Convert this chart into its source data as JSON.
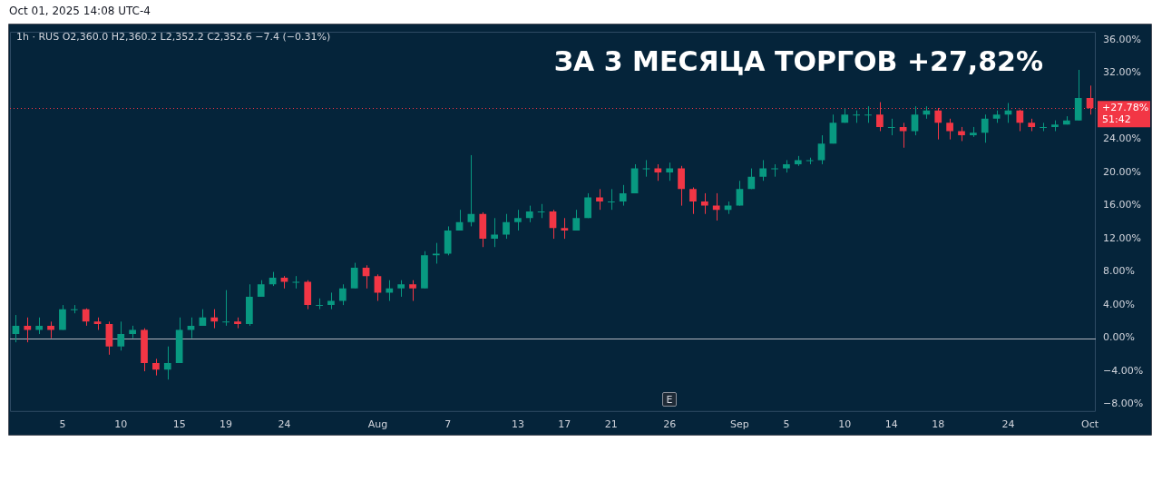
{
  "chart_data": {
    "type": "candlestick",
    "title": "ЗА 3 МЕСЯЦА ТОРГОВ +27,82%",
    "subtitle": "1h · RUS O2,360.0 H2,360.2 L2,352.2 C2,352.6 −7.4 (−0.31%)",
    "annotations": [
      "Oct 01, 2025 14:08 UTC-4",
      "E",
      "51:42"
    ],
    "categories": [
      null,
      null,
      null,
      null,
      "5",
      null,
      null,
      null,
      null,
      "10",
      null,
      null,
      null,
      null,
      "15",
      null,
      null,
      null,
      "19",
      null,
      null,
      null,
      null,
      "24",
      null,
      null,
      null,
      null,
      null,
      null,
      null,
      "Aug",
      null,
      null,
      null,
      null,
      null,
      "7",
      null,
      null,
      null,
      null,
      null,
      "13",
      null,
      null,
      null,
      "17",
      null,
      null,
      null,
      "21",
      null,
      null,
      null,
      null,
      "26",
      null,
      null,
      null,
      null,
      null,
      "Sep",
      null,
      null,
      null,
      "5",
      null,
      null,
      null,
      null,
      "10",
      null,
      null,
      null,
      "14",
      null,
      null,
      null,
      "18",
      null,
      null,
      null,
      null,
      null,
      "24",
      null,
      null,
      null,
      null,
      null,
      null,
      "Oct"
    ],
    "ohlc": [
      [
        0.5,
        2.8,
        -0.5,
        1.5
      ],
      [
        1.5,
        2.5,
        -0.5,
        1.0
      ],
      [
        1.0,
        2.5,
        0.5,
        1.5
      ],
      [
        1.5,
        2.0,
        0.0,
        1.0
      ],
      [
        1.0,
        4.0,
        1.0,
        3.5
      ],
      [
        3.5,
        4.0,
        3.0,
        3.5
      ],
      [
        3.5,
        3.6,
        1.5,
        2.0
      ],
      [
        2.0,
        2.5,
        1.0,
        1.7
      ],
      [
        1.7,
        2.0,
        -2.0,
        -1.0
      ],
      [
        -1.0,
        2.0,
        -1.5,
        0.5
      ],
      [
        0.5,
        1.5,
        0.0,
        1.0
      ],
      [
        1.0,
        1.2,
        -4.0,
        -3.0
      ],
      [
        -3.0,
        -2.5,
        -4.5,
        -3.8
      ],
      [
        -3.8,
        -1.0,
        -5.0,
        -3.0
      ],
      [
        -3.0,
        2.5,
        -3.0,
        1.0
      ],
      [
        1.0,
        2.5,
        0.0,
        1.5
      ],
      [
        1.5,
        3.5,
        1.5,
        2.5
      ],
      [
        2.5,
        3.5,
        1.2,
        2.0
      ],
      [
        2.0,
        5.8,
        1.5,
        2.0
      ],
      [
        2.0,
        2.5,
        1.2,
        1.7
      ],
      [
        1.7,
        6.5,
        1.5,
        5.0
      ],
      [
        5.0,
        7.0,
        5.0,
        6.5
      ],
      [
        6.5,
        8.0,
        6.3,
        7.3
      ],
      [
        7.3,
        7.5,
        6.0,
        6.8
      ],
      [
        6.8,
        7.5,
        6.0,
        6.8
      ],
      [
        6.8,
        7.0,
        3.5,
        4.0
      ],
      [
        4.0,
        4.8,
        3.5,
        4.0
      ],
      [
        4.0,
        5.5,
        3.5,
        4.5
      ],
      [
        4.5,
        6.5,
        4.0,
        6.0
      ],
      [
        6.0,
        9.1,
        6.0,
        8.5
      ],
      [
        8.5,
        8.8,
        6.0,
        7.5
      ],
      [
        7.5,
        7.7,
        4.5,
        5.5
      ],
      [
        5.5,
        7.0,
        4.5,
        6.0
      ],
      [
        6.0,
        7.0,
        5.0,
        6.5
      ],
      [
        6.5,
        7.0,
        4.5,
        6.0
      ],
      [
        6.0,
        10.5,
        6.0,
        10.0
      ],
      [
        10.0,
        11.5,
        9.0,
        10.2
      ],
      [
        10.2,
        13.5,
        10.0,
        13.0
      ],
      [
        13.0,
        15.5,
        13.0,
        14.0
      ],
      [
        14.0,
        22.1,
        13.5,
        15.0
      ],
      [
        15.0,
        15.2,
        11.0,
        12.0
      ],
      [
        12.0,
        14.5,
        11.0,
        12.5
      ],
      [
        12.5,
        15.0,
        12.0,
        14.0
      ],
      [
        14.0,
        15.5,
        13.0,
        14.5
      ],
      [
        14.5,
        16.0,
        14.0,
        15.3
      ],
      [
        15.3,
        16.2,
        14.5,
        15.3
      ],
      [
        15.3,
        15.5,
        12.0,
        13.3
      ],
      [
        13.3,
        14.5,
        12.0,
        13.0
      ],
      [
        13.0,
        15.5,
        13.0,
        14.5
      ],
      [
        14.5,
        17.5,
        14.5,
        17.0
      ],
      [
        17.0,
        18.0,
        15.5,
        16.5
      ],
      [
        16.5,
        18.0,
        15.5,
        16.5
      ],
      [
        16.5,
        18.5,
        16.0,
        17.5
      ],
      [
        17.5,
        21.0,
        17.5,
        20.5
      ],
      [
        20.5,
        21.5,
        19.5,
        20.5
      ],
      [
        20.5,
        21.0,
        19.0,
        20.0
      ],
      [
        20.0,
        21.2,
        19.0,
        20.5
      ],
      [
        20.5,
        20.8,
        16.0,
        18.0
      ],
      [
        18.0,
        18.2,
        15.0,
        16.5
      ],
      [
        16.5,
        17.5,
        15.0,
        16.0
      ],
      [
        16.0,
        17.5,
        14.2,
        15.5
      ],
      [
        15.5,
        16.5,
        15.0,
        16.0
      ],
      [
        16.0,
        19.0,
        16.0,
        18.0
      ],
      [
        18.0,
        20.5,
        18.0,
        19.5
      ],
      [
        19.5,
        21.5,
        19.0,
        20.5
      ],
      [
        20.5,
        21.0,
        19.5,
        20.5
      ],
      [
        20.5,
        21.5,
        20.0,
        21.0
      ],
      [
        21.0,
        22.0,
        20.8,
        21.5
      ],
      [
        21.5,
        21.8,
        21.0,
        21.5
      ],
      [
        21.5,
        24.5,
        21.0,
        23.5
      ],
      [
        23.5,
        27.0,
        23.5,
        26.0
      ],
      [
        26.0,
        27.7,
        26.0,
        27.0
      ],
      [
        27.0,
        27.5,
        26.0,
        27.0
      ],
      [
        27.0,
        28.0,
        26.0,
        27.0
      ],
      [
        27.0,
        28.5,
        25.0,
        25.5
      ],
      [
        25.5,
        26.5,
        24.5,
        25.5
      ],
      [
        25.5,
        26.0,
        23.0,
        25.0
      ],
      [
        25.0,
        28.0,
        24.5,
        27.0
      ],
      [
        27.0,
        28.0,
        26.5,
        27.5
      ],
      [
        27.5,
        27.8,
        24.0,
        26.0
      ],
      [
        26.0,
        26.5,
        24.0,
        25.0
      ],
      [
        25.0,
        25.5,
        23.8,
        24.5
      ],
      [
        24.5,
        25.5,
        24.3,
        24.8
      ],
      [
        24.8,
        27.0,
        23.6,
        26.5
      ],
      [
        26.5,
        27.5,
        26.0,
        27.0
      ],
      [
        27.0,
        28.4,
        26.0,
        27.5
      ],
      [
        27.5,
        27.6,
        25.0,
        26.0
      ],
      [
        26.0,
        26.5,
        25.0,
        25.5
      ],
      [
        25.5,
        26.0,
        25.0,
        25.5
      ],
      [
        25.5,
        26.3,
        25.0,
        25.8
      ],
      [
        25.8,
        26.8,
        25.8,
        26.3
      ],
      [
        26.3,
        32.4,
        26.3,
        29.0
      ],
      [
        29.0,
        30.5,
        27.0,
        27.78
      ]
    ],
    "colors": [
      "#089981",
      "#f23645",
      "#089981",
      "#f23645",
      "#089981",
      "#089981",
      "#f23645",
      "#f23645",
      "#f23645",
      "#089981",
      "#089981",
      "#f23645",
      "#f23645",
      "#089981",
      "#089981",
      "#089981",
      "#089981",
      "#f23645",
      "#089981",
      "#f23645",
      "#089981",
      "#089981",
      "#089981",
      "#f23645",
      "#089981",
      "#f23645",
      "#089981",
      "#089981",
      "#089981",
      "#089981",
      "#f23645",
      "#f23645",
      "#089981",
      "#089981",
      "#f23645",
      "#089981",
      "#089981",
      "#089981",
      "#089981",
      "#089981",
      "#f23645",
      "#089981",
      "#089981",
      "#089981",
      "#089981",
      "#089981",
      "#f23645",
      "#f23645",
      "#089981",
      "#089981",
      "#f23645",
      "#089981",
      "#089981",
      "#089981",
      "#089981",
      "#f23645",
      "#089981",
      "#f23645",
      "#f23645",
      "#f23645",
      "#f23645",
      "#089981",
      "#089981",
      "#089981",
      "#089981",
      "#089981",
      "#089981",
      "#089981",
      "#089981",
      "#089981",
      "#089981",
      "#089981",
      "#089981",
      "#089981",
      "#f23645",
      "#089981",
      "#f23645",
      "#089981",
      "#089981",
      "#f23645",
      "#f23645",
      "#f23645",
      "#089981",
      "#089981",
      "#089981",
      "#089981",
      "#f23645",
      "#f23645",
      "#089981",
      "#089981",
      "#089981",
      "#089981",
      "#f23645"
    ],
    "ylim": [
      -8.9,
      37
    ],
    "yticks": [
      {
        "value": -8,
        "label": "−8.00%"
      },
      {
        "value": -4,
        "label": "−4.00%"
      },
      {
        "value": 0,
        "label": "0.00%"
      },
      {
        "value": 4,
        "label": "4.00%"
      },
      {
        "value": 8,
        "label": "8.00%"
      },
      {
        "value": 12,
        "label": "12.00%"
      },
      {
        "value": 16,
        "label": "16.00%"
      },
      {
        "value": 20,
        "label": "20.00%"
      },
      {
        "value": 24,
        "label": "24.00%"
      },
      {
        "value": 32,
        "label": "32.00%"
      },
      {
        "value": 36,
        "label": "36.00%"
      }
    ],
    "ref_lines": [
      {
        "axis": "y",
        "value": 0,
        "label": null,
        "color": "#b2b5be",
        "line_style": "solid"
      },
      {
        "axis": "y",
        "value": 27.78,
        "label": "+27.78%",
        "color": "#f23645",
        "line_style": "dotted"
      }
    ],
    "grid": false,
    "legend": false
  }
}
